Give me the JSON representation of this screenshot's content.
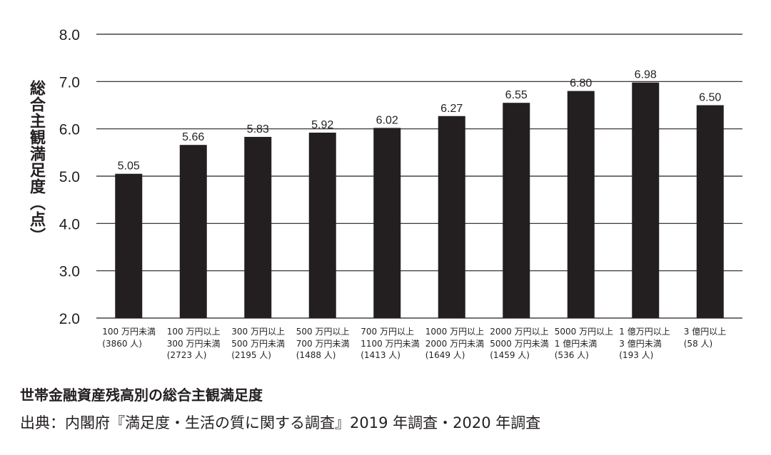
{
  "chart_data": {
    "type": "bar",
    "title": "世帯金融資産残高別の総合主観満足度",
    "source": "出典：内閣府『満足度・生活の質に関する調査』2019 年調査・2020 年調査",
    "ylabel": "総合主観満足度（点）",
    "xlabel": "",
    "ylim": [
      2.0,
      8.0
    ],
    "yticks": [
      "2.0",
      "3.0",
      "4.0",
      "5.0",
      "6.0",
      "7.0",
      "8.0"
    ],
    "grid": true,
    "categories": [
      [
        "100 万円未満",
        "(3860 人)"
      ],
      [
        "100 万円以上",
        "300 万円未満",
        "(2723 人)"
      ],
      [
        "300 万円以上",
        "500 万円未満",
        "(2195 人)"
      ],
      [
        "500 万円以上",
        "700 万円未満",
        "(1488 人)"
      ],
      [
        "700 万円以上",
        "1100 万円未満",
        "(1413 人)"
      ],
      [
        "1000 万円以上",
        "2000 万円未満",
        "(1649 人)"
      ],
      [
        "2000 万円以上",
        "5000 万円未満",
        "(1459 人)"
      ],
      [
        "5000 万円以上",
        "1 億円未満",
        "(536 人)"
      ],
      [
        "1 億万円以上",
        "3 億円未満",
        "(193 人)"
      ],
      [
        "3 億円以上",
        "(58 人)"
      ]
    ],
    "values": [
      5.05,
      5.66,
      5.83,
      5.92,
      6.02,
      6.27,
      6.55,
      6.8,
      6.98,
      6.5
    ],
    "data_labels": [
      "5.05",
      "5.66",
      "5.83",
      "5.92",
      "6.02",
      "6.27",
      "6.55",
      "6.80",
      "6.98",
      "6.50"
    ],
    "bar_color": "#231f20",
    "grid_color": "#231f20"
  }
}
